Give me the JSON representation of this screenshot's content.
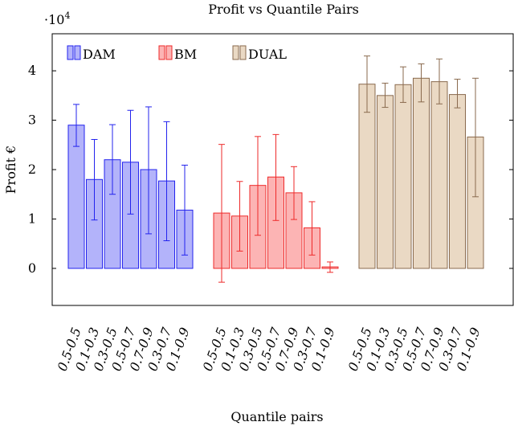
{
  "chart_data": {
    "type": "bar",
    "title": "Profit vs Quantile Pairs",
    "xlabel": "Quantile pairs",
    "ylabel": "Profit €",
    "y_multiplier_label": {
      "base": "·10",
      "exponent": "4"
    },
    "ylim": [
      -7500,
      47500
    ],
    "yticks": [
      0,
      1,
      2,
      3,
      4
    ],
    "ytick_scale": 10000,
    "grid": false,
    "legend_position": "top-left",
    "categories": [
      "0.5-0.5",
      "0.1-0.3",
      "0.3-0.5",
      "0.5-0.7",
      "0.7-0.9",
      "0.3-0.7",
      "0.1-0.9"
    ],
    "series": [
      {
        "name": "DAM",
        "color": "#2323ee",
        "fill": "#b3b3fa",
        "values": [
          29000,
          18000,
          22000,
          21500,
          20000,
          17700,
          11800
        ],
        "error_low": [
          24700,
          9800,
          15000,
          11000,
          7000,
          5600,
          2700
        ],
        "error_high": [
          33200,
          26100,
          29100,
          32000,
          32700,
          29700,
          20900
        ]
      },
      {
        "name": "BM",
        "color": "#ee2a2a",
        "fill": "#fcb4b4",
        "values": [
          11200,
          10600,
          16800,
          18500,
          15300,
          8200,
          300
        ],
        "error_low": [
          -2800,
          3500,
          6700,
          9700,
          9900,
          2700,
          -800
        ],
        "error_high": [
          25100,
          17600,
          26700,
          27100,
          20600,
          13500,
          1300
        ]
      },
      {
        "name": "DUAL",
        "color": "#8a6a4e",
        "fill": "#ead9c4",
        "values": [
          37300,
          35000,
          37200,
          38500,
          37800,
          35200,
          26600
        ],
        "error_low": [
          31600,
          32600,
          33600,
          33700,
          33300,
          32500,
          14500
        ],
        "error_high": [
          43000,
          37500,
          40800,
          41400,
          42400,
          38300,
          38500
        ]
      }
    ]
  }
}
